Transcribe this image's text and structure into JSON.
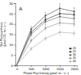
{
  "chart_data": {
    "type": "line",
    "title": "A",
    "xlabel": "Photon Flux Density (μmol² m⁻² s⁻¹)",
    "ylabel": "Net Photosynthesis\n(μmol CO₂ m⁻² s⁻¹)",
    "x": [
      0,
      500,
      1000,
      1500,
      2000
    ],
    "series": [
      {
        "name": "20",
        "color": "#222222",
        "values": [
          0.3,
          16.0,
          22.0,
          25.0,
          24.5
        ],
        "errors": [
          0.1,
          1.0,
          1.2,
          1.5,
          1.3
        ]
      },
      {
        "name": "25",
        "color": "#444444",
        "values": [
          0.3,
          17.5,
          24.0,
          27.5,
          26.0
        ],
        "errors": [
          0.1,
          1.2,
          1.5,
          2.5,
          1.8
        ]
      },
      {
        "name": "30",
        "color": "#666666",
        "values": [
          0.3,
          15.0,
          21.0,
          23.5,
          22.5
        ],
        "errors": [
          0.1,
          1.0,
          1.3,
          1.5,
          1.4
        ]
      },
      {
        "name": "35",
        "color": "#888888",
        "values": [
          0.3,
          12.0,
          18.0,
          20.5,
          20.0
        ],
        "errors": [
          0.1,
          0.8,
          1.0,
          1.2,
          1.1
        ]
      },
      {
        "name": "40",
        "color": "#aaaaaa",
        "values": [
          0.3,
          8.0,
          13.0,
          16.0,
          15.5
        ],
        "errors": [
          0.1,
          0.7,
          0.9,
          1.0,
          1.0
        ]
      }
    ],
    "xlim": [
      -50,
      2100
    ],
    "ylim": [
      0,
      30
    ],
    "xticks": [
      0,
      500,
      1000,
      1500,
      2000
    ],
    "yticks": [
      0,
      5,
      10,
      15,
      20,
      25,
      30
    ],
    "marker": "square",
    "line_style": "solid",
    "legend": "lower right",
    "grid": false
  }
}
